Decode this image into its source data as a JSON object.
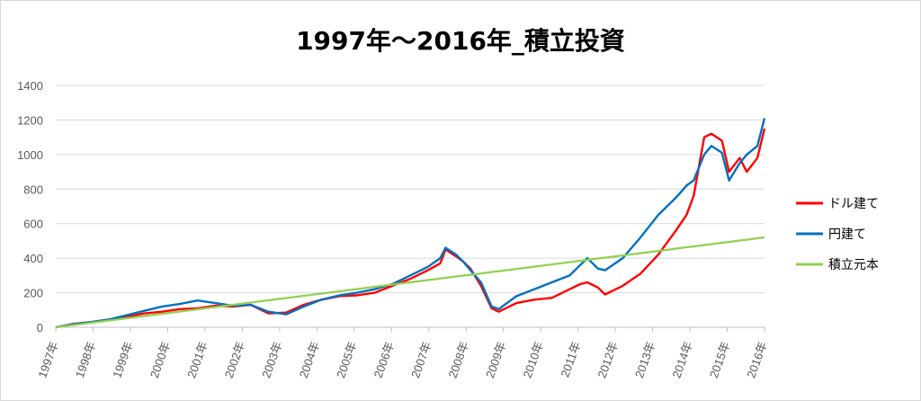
{
  "chart_data": {
    "type": "line",
    "title": "1997年～2016年_積立投資",
    "xlabel": "",
    "ylabel": "",
    "ylim": [
      0,
      1400
    ],
    "yticks": [
      0,
      200,
      400,
      600,
      800,
      1000,
      1200,
      1400
    ],
    "categories": [
      "1997年",
      "1998年",
      "1999年",
      "2000年",
      "2001年",
      "2002年",
      "2003年",
      "2004年",
      "2005年",
      "2006年",
      "2007年",
      "2008年",
      "2009年",
      "2010年",
      "2011年",
      "2012年",
      "2013年",
      "2014年",
      "2015年",
      "2016年"
    ],
    "grid": true,
    "legend_position": "right",
    "x": [
      1997.0,
      1997.5,
      1998.0,
      1998.5,
      1999.0,
      1999.5,
      2000.0,
      2000.5,
      2001.0,
      2001.5,
      2002.0,
      2002.5,
      2003.0,
      2003.5,
      2004.0,
      2004.5,
      2005.0,
      2005.5,
      2006.0,
      2006.5,
      2007.0,
      2007.5,
      2007.85,
      2008.0,
      2008.3,
      2008.5,
      2008.7,
      2009.0,
      2009.3,
      2009.5,
      2010.0,
      2010.5,
      2011.0,
      2011.5,
      2011.8,
      2012.0,
      2012.3,
      2012.5,
      2013.0,
      2013.5,
      2014.0,
      2014.5,
      2014.8,
      2015.0,
      2015.3,
      2015.5,
      2015.8,
      2016.0,
      2016.3,
      2016.5,
      2016.8,
      2017.0
    ],
    "series": [
      {
        "name": "ドル建て",
        "color": "#ff0000",
        "values": [
          0,
          20,
          30,
          45,
          60,
          80,
          90,
          105,
          110,
          125,
          120,
          130,
          80,
          85,
          130,
          160,
          180,
          185,
          200,
          240,
          280,
          330,
          370,
          450,
          410,
          380,
          340,
          240,
          110,
          90,
          140,
          160,
          170,
          220,
          250,
          260,
          230,
          190,
          240,
          310,
          420,
          560,
          650,
          760,
          1100,
          1120,
          1080,
          900,
          980,
          900,
          980,
          1150
        ]
      },
      {
        "name": "円建て",
        "color": "#0070c0",
        "values": [
          0,
          18,
          30,
          45,
          70,
          95,
          120,
          135,
          155,
          140,
          125,
          130,
          90,
          75,
          120,
          160,
          185,
          200,
          220,
          250,
          300,
          350,
          400,
          460,
          420,
          380,
          330,
          260,
          120,
          105,
          180,
          220,
          260,
          300,
          360,
          400,
          340,
          330,
          400,
          520,
          650,
          750,
          820,
          850,
          1000,
          1050,
          1010,
          850,
          950,
          1000,
          1050,
          1210
        ]
      },
      {
        "name": "積立元本",
        "color": "#92d050",
        "values": [
          0,
          13,
          26,
          39,
          52,
          65,
          78,
          91,
          104,
          117,
          130,
          143,
          156,
          169,
          182,
          195,
          208,
          221,
          234,
          247,
          260,
          273,
          282,
          286,
          294,
          299,
          304,
          312,
          320,
          325,
          338,
          351,
          364,
          377,
          385,
          390,
          398,
          403,
          416,
          429,
          442,
          455,
          463,
          468,
          476,
          481,
          489,
          494,
          502,
          507,
          515,
          520
        ]
      }
    ]
  }
}
